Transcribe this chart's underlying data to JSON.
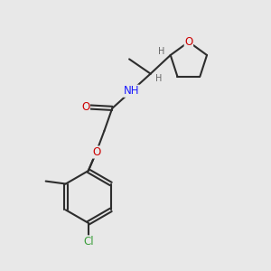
{
  "bg_color": "#e8e8e8",
  "bond_color": "#2d2d2d",
  "bond_width": 1.5,
  "atom_colors": {
    "O": "#cc0000",
    "N": "#1a1aff",
    "Cl": "#3a9e3a",
    "C": "#2d2d2d",
    "H": "#666666"
  },
  "font_size_atom": 8.5,
  "font_size_h": 7.0,
  "font_size_cl": 8.5
}
